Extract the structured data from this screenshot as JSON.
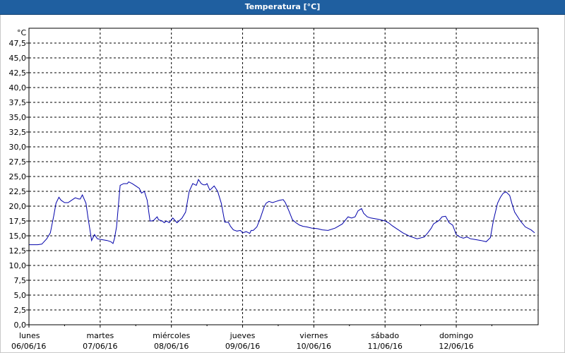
{
  "window": {
    "title": "Temperatura [°C]"
  },
  "chart_data": {
    "type": "line",
    "title": "Temperatura [°C]",
    "ylabel": "°C",
    "ylim": [
      0,
      50
    ],
    "y_ticks": [
      "0,0",
      "2,5",
      "5,0",
      "7,5",
      "10,0",
      "12,5",
      "15,0",
      "17,5",
      "20,0",
      "22,5",
      "25,0",
      "27,5",
      "30,0",
      "32,5",
      "35,0",
      "37,5",
      "40,0",
      "42,5",
      "45,0",
      "47,5"
    ],
    "x_range_days": [
      0,
      7.15
    ],
    "x_ticks": [
      {
        "day": "lunes",
        "date": "06/06/16"
      },
      {
        "day": "martes",
        "date": "07/06/16"
      },
      {
        "day": "miércoles",
        "date": "08/06/16"
      },
      {
        "day": "jueves",
        "date": "09/06/16"
      },
      {
        "day": "viernes",
        "date": "10/06/16"
      },
      {
        "day": "sábado",
        "date": "11/06/16"
      },
      {
        "day": "domingo",
        "date": "12/06/16"
      }
    ],
    "grid": true,
    "series": [
      {
        "color": "#0000aa",
        "x": [
          0,
          0.12,
          0.18,
          0.25,
          0.3,
          0.35,
          0.38,
          0.42,
          0.45,
          0.5,
          0.55,
          0.6,
          0.65,
          0.7,
          0.72,
          0.75,
          0.8,
          0.83,
          0.85,
          0.88,
          0.92,
          0.96,
          1.0,
          1.05,
          1.1,
          1.15,
          1.18,
          1.2,
          1.23,
          1.28,
          1.33,
          1.38,
          1.4,
          1.45,
          1.5,
          1.55,
          1.58,
          1.62,
          1.66,
          1.7,
          1.72,
          1.75,
          1.8,
          1.82,
          1.87,
          1.9,
          1.93,
          1.97,
          2.02,
          2.08,
          2.15,
          2.2,
          2.25,
          2.3,
          2.35,
          2.38,
          2.42,
          2.45,
          2.48,
          2.5,
          2.54,
          2.6,
          2.65,
          2.7,
          2.75,
          2.8,
          2.83,
          2.87,
          2.92,
          2.97,
          3.0,
          3.05,
          3.1,
          3.12,
          3.15,
          3.2,
          3.25,
          3.3,
          3.33,
          3.37,
          3.42,
          3.47,
          3.52,
          3.57,
          3.6,
          3.65,
          3.7,
          3.75,
          3.8,
          3.85,
          3.9,
          3.97,
          4.05,
          4.12,
          4.2,
          4.3,
          4.4,
          4.48,
          4.53,
          4.58,
          4.62,
          4.67,
          4.7,
          4.75,
          4.8,
          4.9,
          5.0,
          5.05,
          5.1,
          5.15,
          5.2,
          5.25,
          5.3,
          5.35,
          5.45,
          5.55,
          5.6,
          5.65,
          5.68,
          5.72,
          5.76,
          5.8,
          5.85,
          5.9,
          5.95,
          6.0,
          6.05,
          6.1,
          6.15,
          6.2,
          6.25,
          6.3,
          6.35,
          6.42,
          6.48,
          6.52,
          6.55,
          6.58,
          6.62,
          6.66,
          6.7,
          6.75,
          6.78,
          6.82,
          6.9,
          6.97,
          7.05,
          7.1
        ],
        "y": [
          13.5,
          13.5,
          13.6,
          14.5,
          15.5,
          18.5,
          20.5,
          21.5,
          21,
          20.6,
          20.6,
          21,
          21.4,
          21.2,
          21.2,
          21.9,
          20.5,
          18,
          16.5,
          14.2,
          15.2,
          14.5,
          14.4,
          14.3,
          14.2,
          14.0,
          13.7,
          14.5,
          16.5,
          23.5,
          23.8,
          23.8,
          24.1,
          23.8,
          23.4,
          23.0,
          22.2,
          22.5,
          21.0,
          17.5,
          17.5,
          17.6,
          18.2,
          17.7,
          17.5,
          17.2,
          17.5,
          17.2,
          18.0,
          17.2,
          18.0,
          19.0,
          22.5,
          23.8,
          23.5,
          24.5,
          23.8,
          23.6,
          23.6,
          23.8,
          22.7,
          23.4,
          22.5,
          20.5,
          17.3,
          17.3,
          16.6,
          16.0,
          15.8,
          15.9,
          15.5,
          15.7,
          15.4,
          15.9,
          15.9,
          16.5,
          18.0,
          19.8,
          20.5,
          20.8,
          20.6,
          20.8,
          21.0,
          21.1,
          20.6,
          19.2,
          17.7,
          17.2,
          16.8,
          16.6,
          16.5,
          16.3,
          16.2,
          16.0,
          15.9,
          16.3,
          17.0,
          18.2,
          18.0,
          18.2,
          19.2,
          19.6,
          18.8,
          18.2,
          18.0,
          17.8,
          17.5,
          17.2,
          16.7,
          16.3,
          15.9,
          15.5,
          15.2,
          14.9,
          14.5,
          14.8,
          15.5,
          16.3,
          17.0,
          17.3,
          17.6,
          18.2,
          18.3,
          17.2,
          16.8,
          15.2,
          14.8,
          14.6,
          14.8,
          14.5,
          14.4,
          14.3,
          14.2,
          14.0,
          14.7,
          17.5,
          19.0,
          20.5,
          21.5,
          22.2,
          22.4,
          21.8,
          20.5,
          19.0,
          17.5,
          16.5,
          16.0,
          15.5
        ]
      }
    ]
  }
}
